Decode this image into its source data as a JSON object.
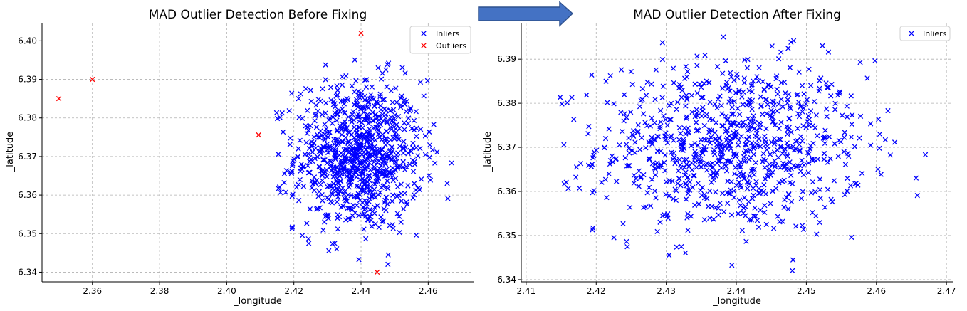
{
  "chart_data": [
    {
      "type": "scatter",
      "title": "MAD Outlier Detection Before Fixing",
      "xlabel": "_longitude",
      "ylabel": "_latitude",
      "xlim": [
        2.345,
        2.4735
      ],
      "ylim": [
        6.3375,
        6.4045
      ],
      "xticks": [
        "2.36",
        "2.38",
        "2.40",
        "2.42",
        "2.44",
        "2.46"
      ],
      "yticks": [
        "6.34",
        "6.35",
        "6.36",
        "6.37",
        "6.38",
        "6.39",
        "6.40"
      ],
      "grid": true,
      "legend_position": "top-right",
      "marker": "x",
      "series": [
        {
          "name": "Inliers",
          "color": "#0000ff",
          "approx_count": 900,
          "distribution": "gaussian cloud",
          "x_mean": 2.4393,
          "x_std": 0.0095,
          "y_mean": 6.3702,
          "y_std": 0.0098,
          "x_range": [
            2.412,
            2.467
          ],
          "y_range": [
            6.342,
            6.397
          ]
        },
        {
          "name": "Outliers",
          "color": "#ff0000",
          "points": [
            [
              2.35,
              6.385
            ],
            [
              2.36,
              6.39
            ],
            [
              2.4095,
              6.3756
            ],
            [
              2.44,
              6.402
            ],
            [
              2.4448,
              6.34
            ]
          ]
        }
      ]
    },
    {
      "type": "scatter",
      "title": "MAD Outlier Detection After Fixing",
      "xlabel": "_longitude",
      "ylabel": "_latitude",
      "xlim": [
        2.4093,
        2.4709
      ],
      "ylim": [
        6.3395,
        6.3981
      ],
      "xticks": [
        "2.41",
        "2.42",
        "2.43",
        "2.44",
        "2.45",
        "2.46",
        "2.47"
      ],
      "yticks": [
        "6.34",
        "6.35",
        "6.36",
        "6.37",
        "6.38",
        "6.39"
      ],
      "grid": true,
      "legend_position": "top-right",
      "marker": "x",
      "series": [
        {
          "name": "Inliers",
          "color": "#0000ff",
          "approx_count": 900,
          "distribution": "gaussian cloud",
          "x_mean": 2.4393,
          "x_std": 0.0095,
          "y_mean": 6.3702,
          "y_std": 0.0098,
          "x_range": [
            2.412,
            2.467
          ],
          "y_range": [
            6.342,
            6.397
          ]
        }
      ]
    }
  ],
  "arrow": {
    "fill": "#4472c4",
    "stroke": "#2f528f"
  }
}
